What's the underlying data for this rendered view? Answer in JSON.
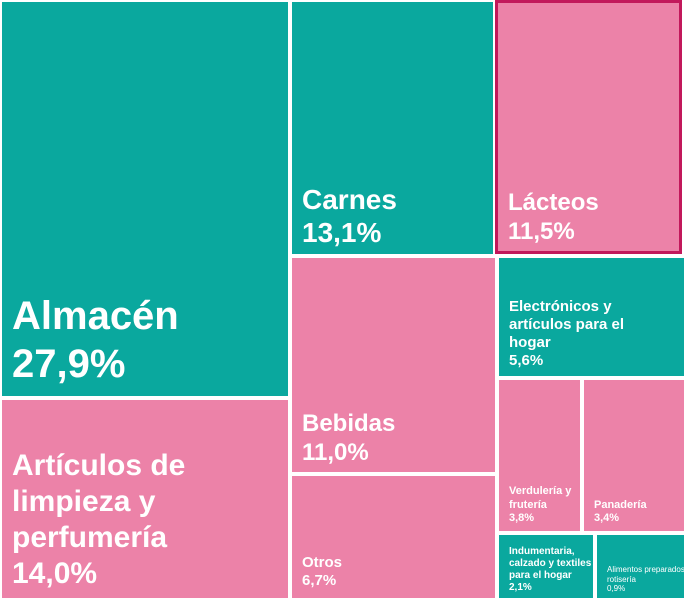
{
  "chart_data": {
    "type": "treemap",
    "title": "",
    "colors": {
      "teal": "#0aa89e",
      "pink": "#ec82a8",
      "highlight_border": "#c2185b"
    },
    "items": [
      {
        "label": "Almacén",
        "value_label": "27,9%",
        "value": 27.9,
        "color": "#0aa89e"
      },
      {
        "label": "Carnes",
        "value_label": "13,1%",
        "value": 13.1,
        "color": "#0aa89e"
      },
      {
        "label": "Lácteos",
        "value_label": "11,5%",
        "value": 11.5,
        "color": "#ec82a8",
        "highlighted": true
      },
      {
        "label": "Artículos de limpieza y perfumería",
        "value_label": "14,0%",
        "value": 14.0,
        "color": "#ec82a8"
      },
      {
        "label": "Bebidas",
        "value_label": "11,0%",
        "value": 11.0,
        "color": "#ec82a8"
      },
      {
        "label": "Otros",
        "value_label": "6,7%",
        "value": 6.7,
        "color": "#ec82a8"
      },
      {
        "label": "Electrónicos y artículos para el hogar",
        "value_label": "5,6%",
        "value": 5.6,
        "color": "#0aa89e"
      },
      {
        "label": "Verdulería y frutería",
        "value_label": "3,8%",
        "value": 3.8,
        "color": "#ec82a8"
      },
      {
        "label": "Panadería",
        "value_label": "3,4%",
        "value": 3.4,
        "color": "#ec82a8"
      },
      {
        "label": "Indumentaria, calzado y textiles para el hogar",
        "value_label": "2,1%",
        "value": 2.1,
        "color": "#0aa89e"
      },
      {
        "label": "Alimentos preparados y rotisería",
        "value_label": "0,9%",
        "value": 0.9,
        "color": "#0aa89e"
      }
    ]
  }
}
